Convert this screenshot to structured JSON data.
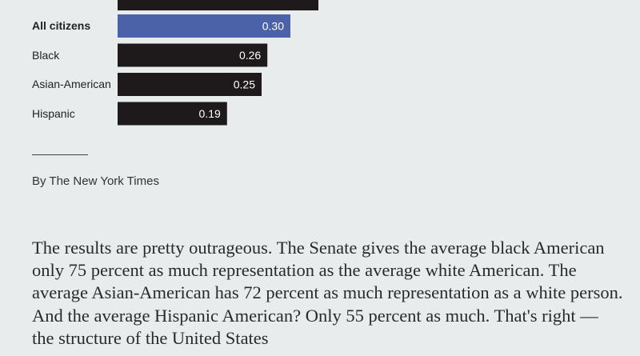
{
  "chart_data": {
    "type": "bar",
    "orientation": "horizontal",
    "categories": [
      "All citizens",
      "Black",
      "Asian-American",
      "Hispanic"
    ],
    "values": [
      0.3,
      0.26,
      0.25,
      0.19
    ],
    "value_labels": [
      "0.30",
      "0.26",
      "0.25",
      "0.19"
    ],
    "title": "",
    "xlabel": "",
    "ylabel": "",
    "xlim": [
      0,
      0.4
    ],
    "highlight_category": "All citizens",
    "colors": {
      "highlight": "#4b62a8",
      "default": "#1e1a1c"
    }
  },
  "credit": "By The New York Times",
  "article_text": "The results are pretty outrageous. The Senate gives the average black American only 75 percent as much representation as the average white American. The average Asian-American has 72 percent as much representation as a white person. And the average Hispanic American? Only 55 percent as much. That's right — the structure of the United States"
}
